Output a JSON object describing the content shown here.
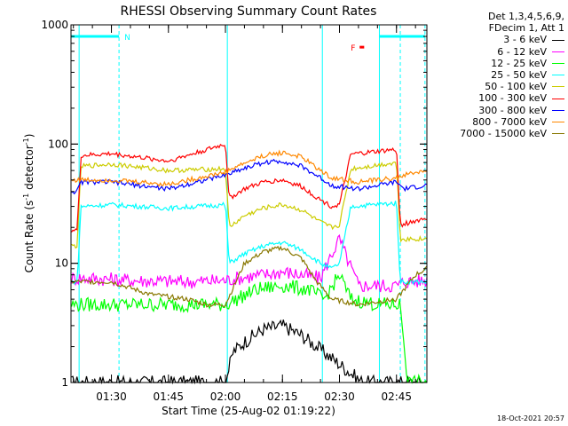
{
  "chart_data": {
    "type": "line",
    "title": "RHESSI Observing Summary Count Rates",
    "xlabel": "Start Time (25-Aug-02 01:19:22)",
    "ylabel_main": "Count Rate (s",
    "ylabel_sup1": "-1",
    "ylabel_mid": " detector",
    "ylabel_sup2": "-1",
    "ylabel_end": ")",
    "ylog": true,
    "ylim": [
      1,
      1000
    ],
    "xlim": [
      "01:19:22",
      "02:53:00"
    ],
    "y_ticks": [
      "1",
      "10",
      "100",
      "1000"
    ],
    "x_ticks": [
      "01:30",
      "01:45",
      "02:00",
      "02:15",
      "02:30",
      "02:45"
    ],
    "legend_header": [
      "Det 1,3,4,5,6,9,",
      "FDecim 1, Att 1"
    ],
    "series": [
      {
        "name": "3 - 6 keV",
        "color": "#000000",
        "points": [
          [
            "01:19:30",
            1.0
          ],
          [
            "02:00",
            1.0
          ],
          [
            "02:02",
            1.8
          ],
          [
            "02:05",
            2.2
          ],
          [
            "02:10",
            2.8
          ],
          [
            "02:15",
            3.0
          ],
          [
            "02:20",
            2.5
          ],
          [
            "02:24",
            2.0
          ],
          [
            "02:28",
            1.6
          ],
          [
            "02:33",
            1.2
          ],
          [
            "02:36",
            1.0
          ],
          [
            "02:53",
            1.0
          ]
        ]
      },
      {
        "name": "6 - 12 keV",
        "color": "#ff00ff",
        "points": [
          [
            "01:19:30",
            7.5
          ],
          [
            "01:25",
            7.5
          ],
          [
            "01:35",
            7.2
          ],
          [
            "01:50",
            7.0
          ],
          [
            "02:00",
            7.2
          ],
          [
            "02:03",
            7.5
          ],
          [
            "02:10",
            8.0
          ],
          [
            "02:15",
            8.5
          ],
          [
            "02:20",
            8.0
          ],
          [
            "02:25",
            7.5
          ],
          [
            "02:28",
            12.0
          ],
          [
            "02:30",
            16.0
          ],
          [
            "02:32",
            11.0
          ],
          [
            "02:35",
            6.5
          ],
          [
            "02:45",
            6.5
          ],
          [
            "02:47",
            7.0
          ],
          [
            "02:53",
            7.2
          ]
        ]
      },
      {
        "name": "12 - 25 keV",
        "color": "#00ff00",
        "points": [
          [
            "01:19:30",
            4.5
          ],
          [
            "01:35",
            4.5
          ],
          [
            "01:50",
            4.5
          ],
          [
            "02:00",
            4.5
          ],
          [
            "02:03",
            5.0
          ],
          [
            "02:08",
            6.0
          ],
          [
            "02:15",
            6.5
          ],
          [
            "02:22",
            6.0
          ],
          [
            "02:26",
            5.0
          ],
          [
            "02:30",
            8.0
          ],
          [
            "02:33",
            5.0
          ],
          [
            "02:40",
            4.5
          ],
          [
            "02:46",
            4.5
          ],
          [
            "02:48",
            1.0
          ],
          [
            "02:53",
            1.0
          ]
        ]
      },
      {
        "name": "25 - 50 keV",
        "color": "#00ffff",
        "points": [
          [
            "01:19:30",
            7.0
          ],
          [
            "01:21",
            7.0
          ],
          [
            "01:22",
            30.0
          ],
          [
            "01:30",
            31.0
          ],
          [
            "01:45",
            29.0
          ],
          [
            "02:00",
            31.0
          ],
          [
            "02:01",
            10.0
          ],
          [
            "02:05",
            12.0
          ],
          [
            "02:10",
            14.0
          ],
          [
            "02:15",
            15.0
          ],
          [
            "02:20",
            13.0
          ],
          [
            "02:25",
            10.0
          ],
          [
            "02:28",
            9.0
          ],
          [
            "02:30",
            10.0
          ],
          [
            "02:33",
            30.0
          ],
          [
            "02:45",
            32.0
          ],
          [
            "02:46",
            7.0
          ],
          [
            "02:53",
            7.0
          ]
        ]
      },
      {
        "name": "50 - 100 keV",
        "color": "#cccc00",
        "points": [
          [
            "01:19:30",
            14.0
          ],
          [
            "01:21",
            14.0
          ],
          [
            "01:22",
            65.0
          ],
          [
            "01:30",
            68.0
          ],
          [
            "01:45",
            60.0
          ],
          [
            "02:00",
            62.0
          ],
          [
            "02:01",
            20.0
          ],
          [
            "02:05",
            25.0
          ],
          [
            "02:10",
            29.0
          ],
          [
            "02:15",
            31.0
          ],
          [
            "02:20",
            28.0
          ],
          [
            "02:25",
            22.0
          ],
          [
            "02:28",
            20.0
          ],
          [
            "02:30",
            21.0
          ],
          [
            "02:33",
            62.0
          ],
          [
            "02:45",
            70.0
          ],
          [
            "02:46",
            16.0
          ],
          [
            "02:53",
            16.0
          ]
        ]
      },
      {
        "name": "100 - 300 keV",
        "color": "#ff0000",
        "points": [
          [
            "01:19:30",
            19.0
          ],
          [
            "01:21",
            19.0
          ],
          [
            "01:22",
            80.0
          ],
          [
            "01:30",
            83.0
          ],
          [
            "01:45",
            72.0
          ],
          [
            "02:00",
            100.0
          ],
          [
            "02:01",
            35.0
          ],
          [
            "02:05",
            42.0
          ],
          [
            "02:10",
            48.0
          ],
          [
            "02:15",
            50.0
          ],
          [
            "02:20",
            44.0
          ],
          [
            "02:25",
            34.0
          ],
          [
            "02:28",
            30.0
          ],
          [
            "02:30",
            31.0
          ],
          [
            "02:33",
            82.0
          ],
          [
            "02:45",
            90.0
          ],
          [
            "02:46",
            21.0
          ],
          [
            "02:53",
            24.0
          ]
        ]
      },
      {
        "name": "300 - 800 keV",
        "color": "#0000ff",
        "points": [
          [
            "01:19:30",
            40.0
          ],
          [
            "01:21",
            40.0
          ],
          [
            "01:22",
            48.0
          ],
          [
            "01:30",
            48.0
          ],
          [
            "01:45",
            42.0
          ],
          [
            "02:00",
            55.0
          ],
          [
            "02:03",
            60.0
          ],
          [
            "02:10",
            70.0
          ],
          [
            "02:15",
            72.0
          ],
          [
            "02:20",
            65.0
          ],
          [
            "02:25",
            52.0
          ],
          [
            "02:28",
            45.0
          ],
          [
            "02:35",
            42.0
          ],
          [
            "02:45",
            48.0
          ],
          [
            "02:47",
            42.0
          ],
          [
            "02:53",
            45.0
          ]
        ]
      },
      {
        "name": "800 - 7000 keV",
        "color": "#ff8800",
        "points": [
          [
            "01:19:30",
            50.0
          ],
          [
            "01:30",
            50.0
          ],
          [
            "01:45",
            46.0
          ],
          [
            "02:00",
            58.0
          ],
          [
            "02:03",
            65.0
          ],
          [
            "02:10",
            80.0
          ],
          [
            "02:15",
            85.0
          ],
          [
            "02:20",
            78.0
          ],
          [
            "02:25",
            60.0
          ],
          [
            "02:28",
            52.0
          ],
          [
            "02:35",
            48.0
          ],
          [
            "02:45",
            52.0
          ],
          [
            "02:47",
            55.0
          ],
          [
            "02:53",
            60.0
          ]
        ]
      },
      {
        "name": "7000 - 15000 keV",
        "color": "#887700",
        "points": [
          [
            "01:19:30",
            7.0
          ],
          [
            "01:30",
            7.0
          ],
          [
            "01:40",
            5.5
          ],
          [
            "01:50",
            5.0
          ],
          [
            "01:55",
            4.5
          ],
          [
            "02:00",
            4.5
          ],
          [
            "02:05",
            10.0
          ],
          [
            "02:10",
            12.5
          ],
          [
            "02:15",
            13.5
          ],
          [
            "02:20",
            11.0
          ],
          [
            "02:24",
            7.0
          ],
          [
            "02:28",
            5.0
          ],
          [
            "02:35",
            4.5
          ],
          [
            "02:45",
            5.0
          ],
          [
            "02:50",
            8.0
          ],
          [
            "02:53",
            9.0
          ]
        ]
      }
    ],
    "annotations": [
      {
        "label": "N",
        "color": "#00ffff",
        "x_start": "01:19:22",
        "x_end": "01:32:00",
        "y": 800
      },
      {
        "label": "",
        "color": "#00ffff",
        "x_start": "02:40:30",
        "x_end": "02:52:30",
        "y": 800
      },
      {
        "label": "F",
        "color": "#ff0000",
        "x_start": "02:32:30",
        "x_end": "02:36:30",
        "y": 650
      }
    ],
    "attenuator_lines": [
      {
        "time": "01:21:30",
        "color": "#00ffff",
        "style": "solid"
      },
      {
        "time": "01:32:00",
        "color": "#00ffff",
        "style": "dashed"
      },
      {
        "time": "02:00:30",
        "color": "#00ffff",
        "style": "solid"
      },
      {
        "time": "02:25:30",
        "color": "#00ffff",
        "style": "solid"
      },
      {
        "time": "02:40:30",
        "color": "#00ffff",
        "style": "solid"
      },
      {
        "time": "02:46:00",
        "color": "#00ffff",
        "style": "dashed"
      },
      {
        "time": "02:52:30",
        "color": "#00ffff",
        "style": "dashed"
      }
    ],
    "grid": false
  },
  "footer_timestamp": "18-Oct-2021 20:57"
}
